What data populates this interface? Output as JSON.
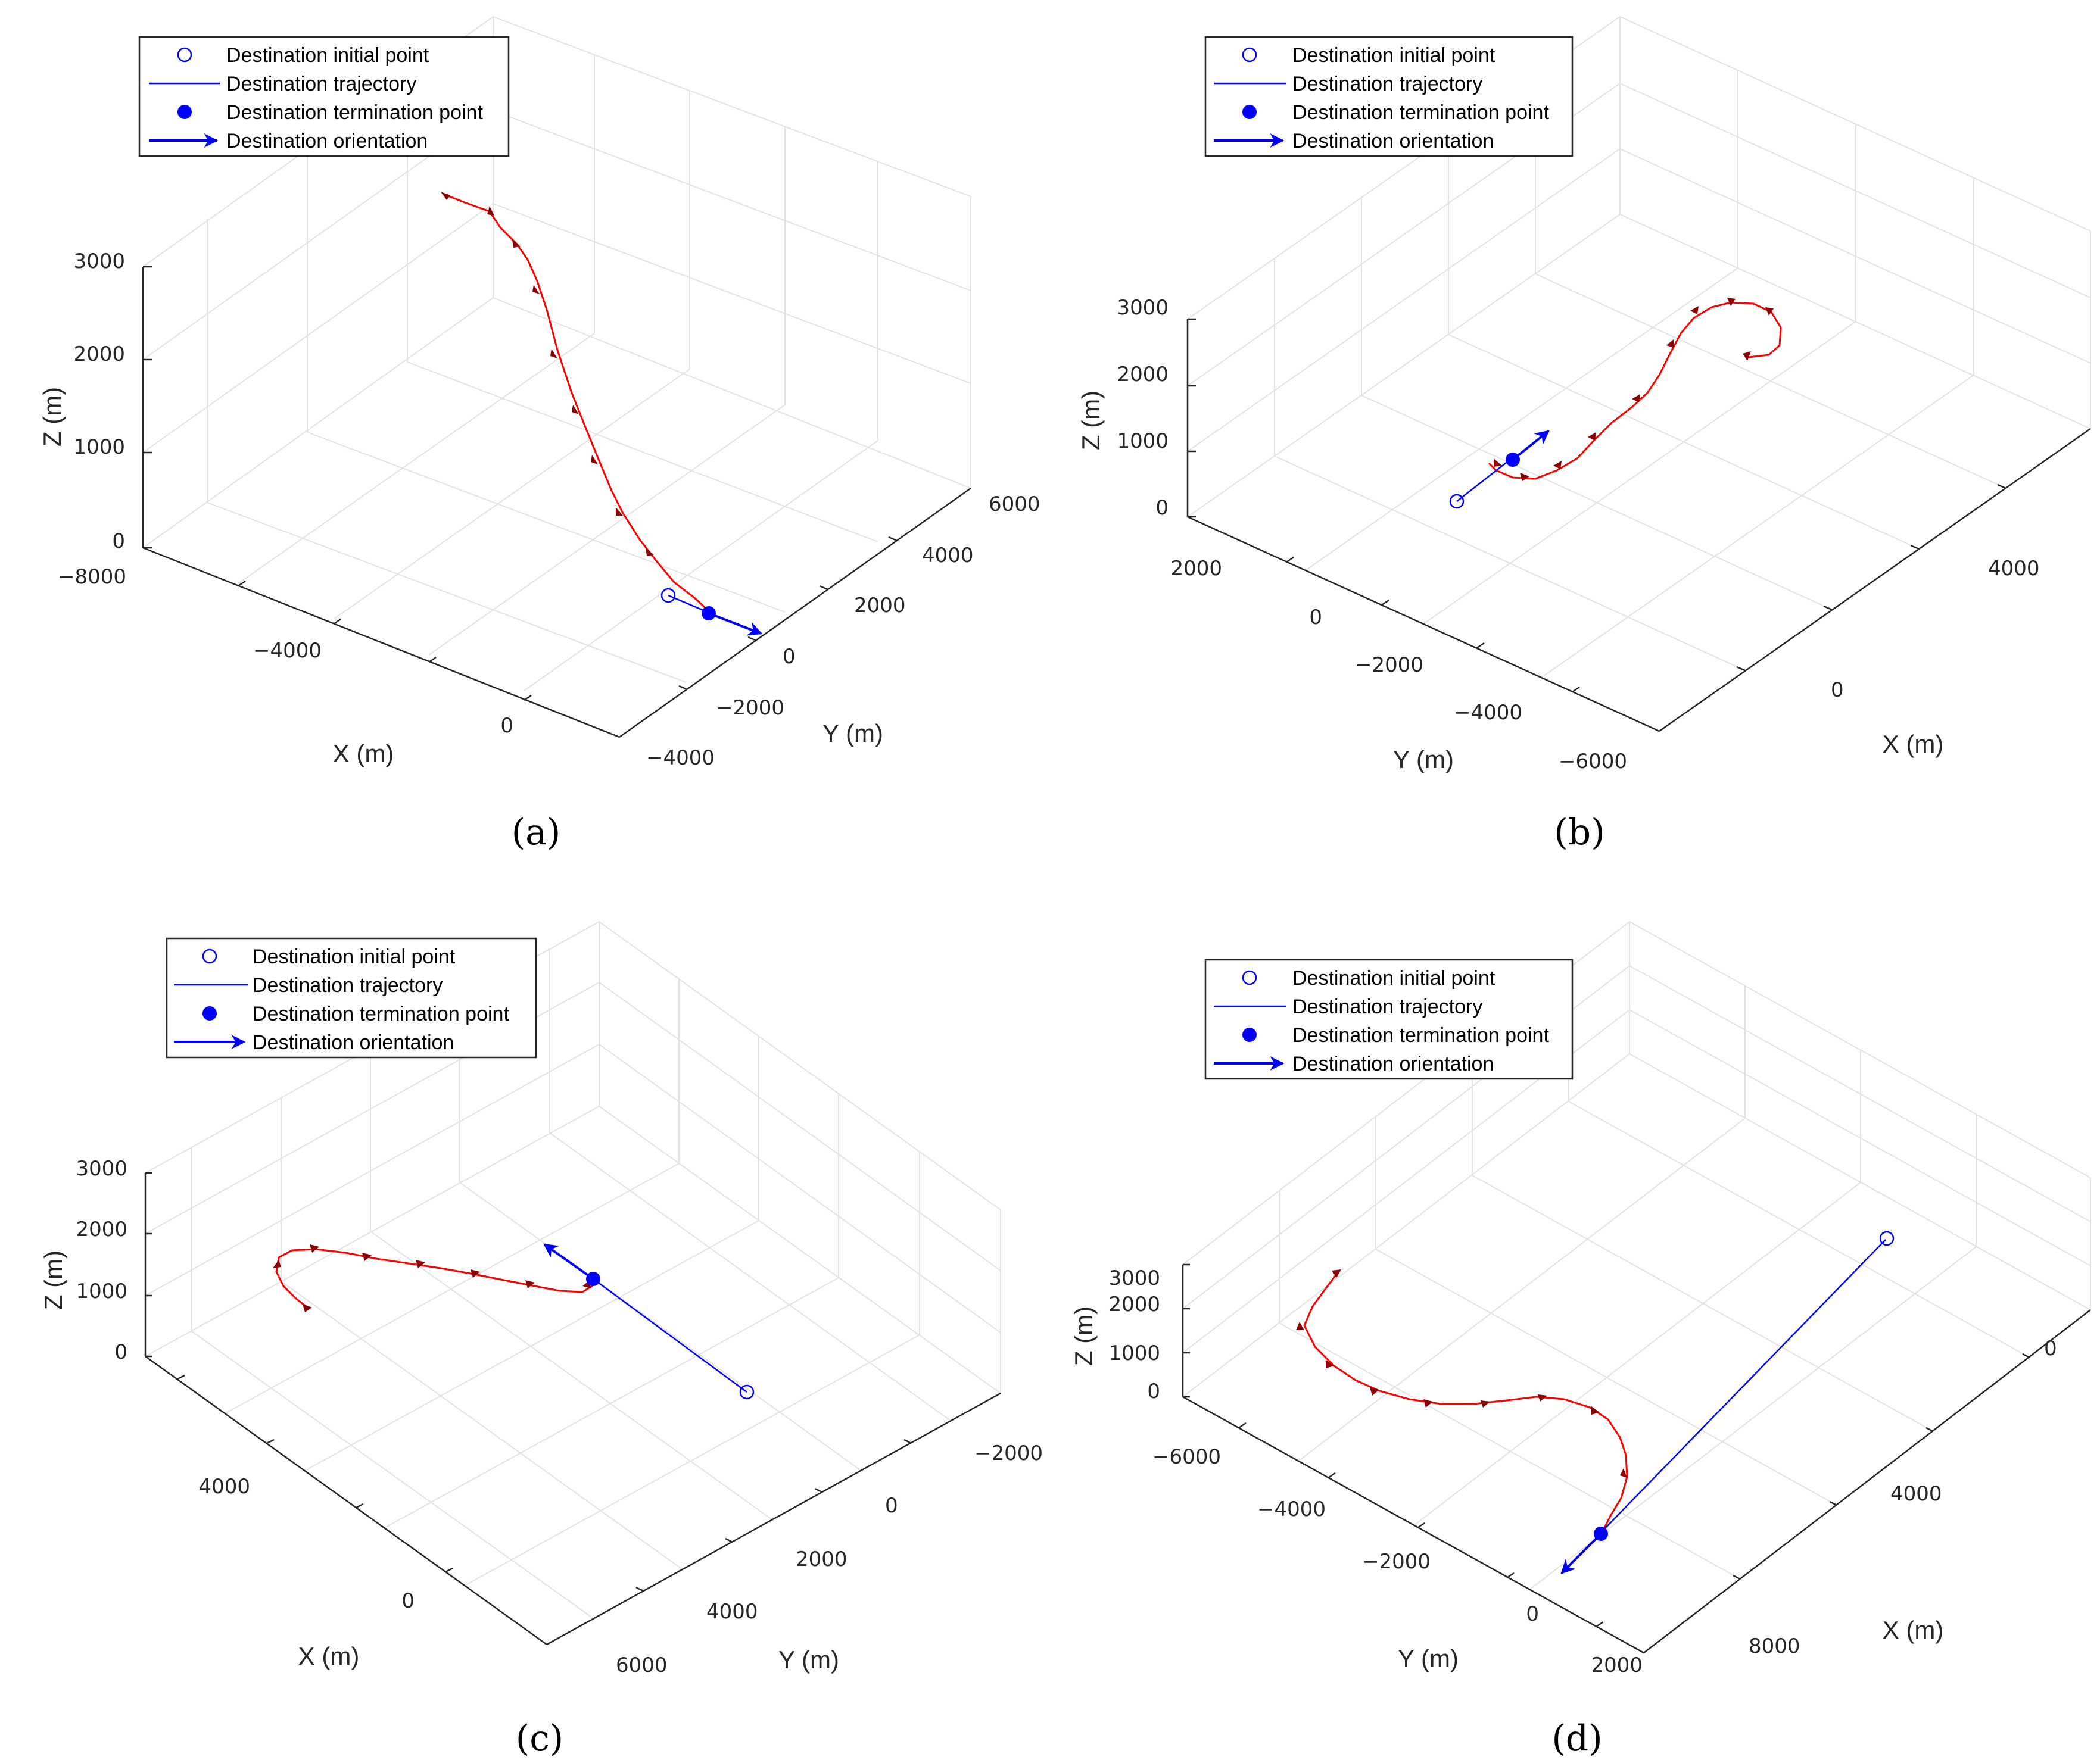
{
  "figure": {
    "panels": [
      "a",
      "b",
      "c",
      "d"
    ]
  },
  "legend": {
    "initial": "Destination initial point",
    "trajectory": "Destination trajectory",
    "termination": "Destination termination point",
    "orientation": "Destination orientation"
  },
  "colors": {
    "destination": "#0000ff",
    "trajectory": "#ff0000",
    "aircraft": "#8b0000",
    "grid": "#e3e3e3",
    "axis": "#262626"
  },
  "chart_data": [
    {
      "type": "line3d",
      "panel": "a",
      "caption": "(a)",
      "xlabel": "X (m)",
      "ylabel": "Y (m)",
      "zlabel": "Z (m)",
      "xticks": [
        "−8000",
        "−4000",
        "0"
      ],
      "yticks": [
        "−4000",
        "−2000",
        "0",
        "2000",
        "4000",
        "6000"
      ],
      "zticks": [
        "0",
        "1000",
        "2000",
        "3000"
      ],
      "destination_initial": {
        "x": 800,
        "y": 100,
        "z": 0
      },
      "destination_termination": {
        "x": 1500,
        "y": -200,
        "z": 0
      },
      "orientation": "toward +X / −Y",
      "trajectory_points": 11,
      "grid": true
    },
    {
      "type": "line3d",
      "panel": "b",
      "caption": "(b)",
      "xlabel": "X (m)",
      "ylabel": "Y (m)",
      "zlabel": "Z (m)",
      "xticks": [
        "0",
        "4000"
      ],
      "yticks": [
        "−6000",
        "−4000",
        "−2000",
        "0",
        "2000"
      ],
      "zticks": [
        "0",
        "1000",
        "2000",
        "3000"
      ],
      "destination_initial": {
        "x": 0,
        "y": 1000,
        "z": 0
      },
      "destination_termination": {
        "x": 500,
        "y": 700,
        "z": 0
      },
      "orientation": "toward +X",
      "trajectory_points": 12,
      "grid": true
    },
    {
      "type": "line3d",
      "panel": "c",
      "caption": "(c)",
      "xlabel": "X (m)",
      "ylabel": "Y (m)",
      "zlabel": "Z (m)",
      "xticks": [
        "0",
        "4000"
      ],
      "yticks": [
        "6000",
        "4000",
        "2000",
        "0",
        "−2000"
      ],
      "zticks": [
        "0",
        "1000",
        "2000",
        "3000"
      ],
      "destination_initial": {
        "x": 500,
        "y": 2000,
        "z": 0
      },
      "destination_termination": {
        "x": 3000,
        "y": 700,
        "z": 0
      },
      "orientation": "toward −Y",
      "trajectory_points": 8,
      "grid": true
    },
    {
      "type": "line3d",
      "panel": "d",
      "caption": "(d)",
      "xlabel": "X (m)",
      "ylabel": "Y (m)",
      "zlabel": "Z (m)",
      "xticks": [
        "8000",
        "4000",
        "0"
      ],
      "yticks": [
        "−6000",
        "−4000",
        "−2000",
        "0",
        "2000"
      ],
      "zticks": [
        "0",
        "1000",
        "2000",
        "3000"
      ],
      "destination_initial": {
        "x": 0,
        "y": -1000,
        "z": 0
      },
      "destination_termination": {
        "x": 8000,
        "y": 0,
        "z": 0
      },
      "orientation": "toward +X",
      "trajectory_points": 9,
      "grid": true
    }
  ]
}
